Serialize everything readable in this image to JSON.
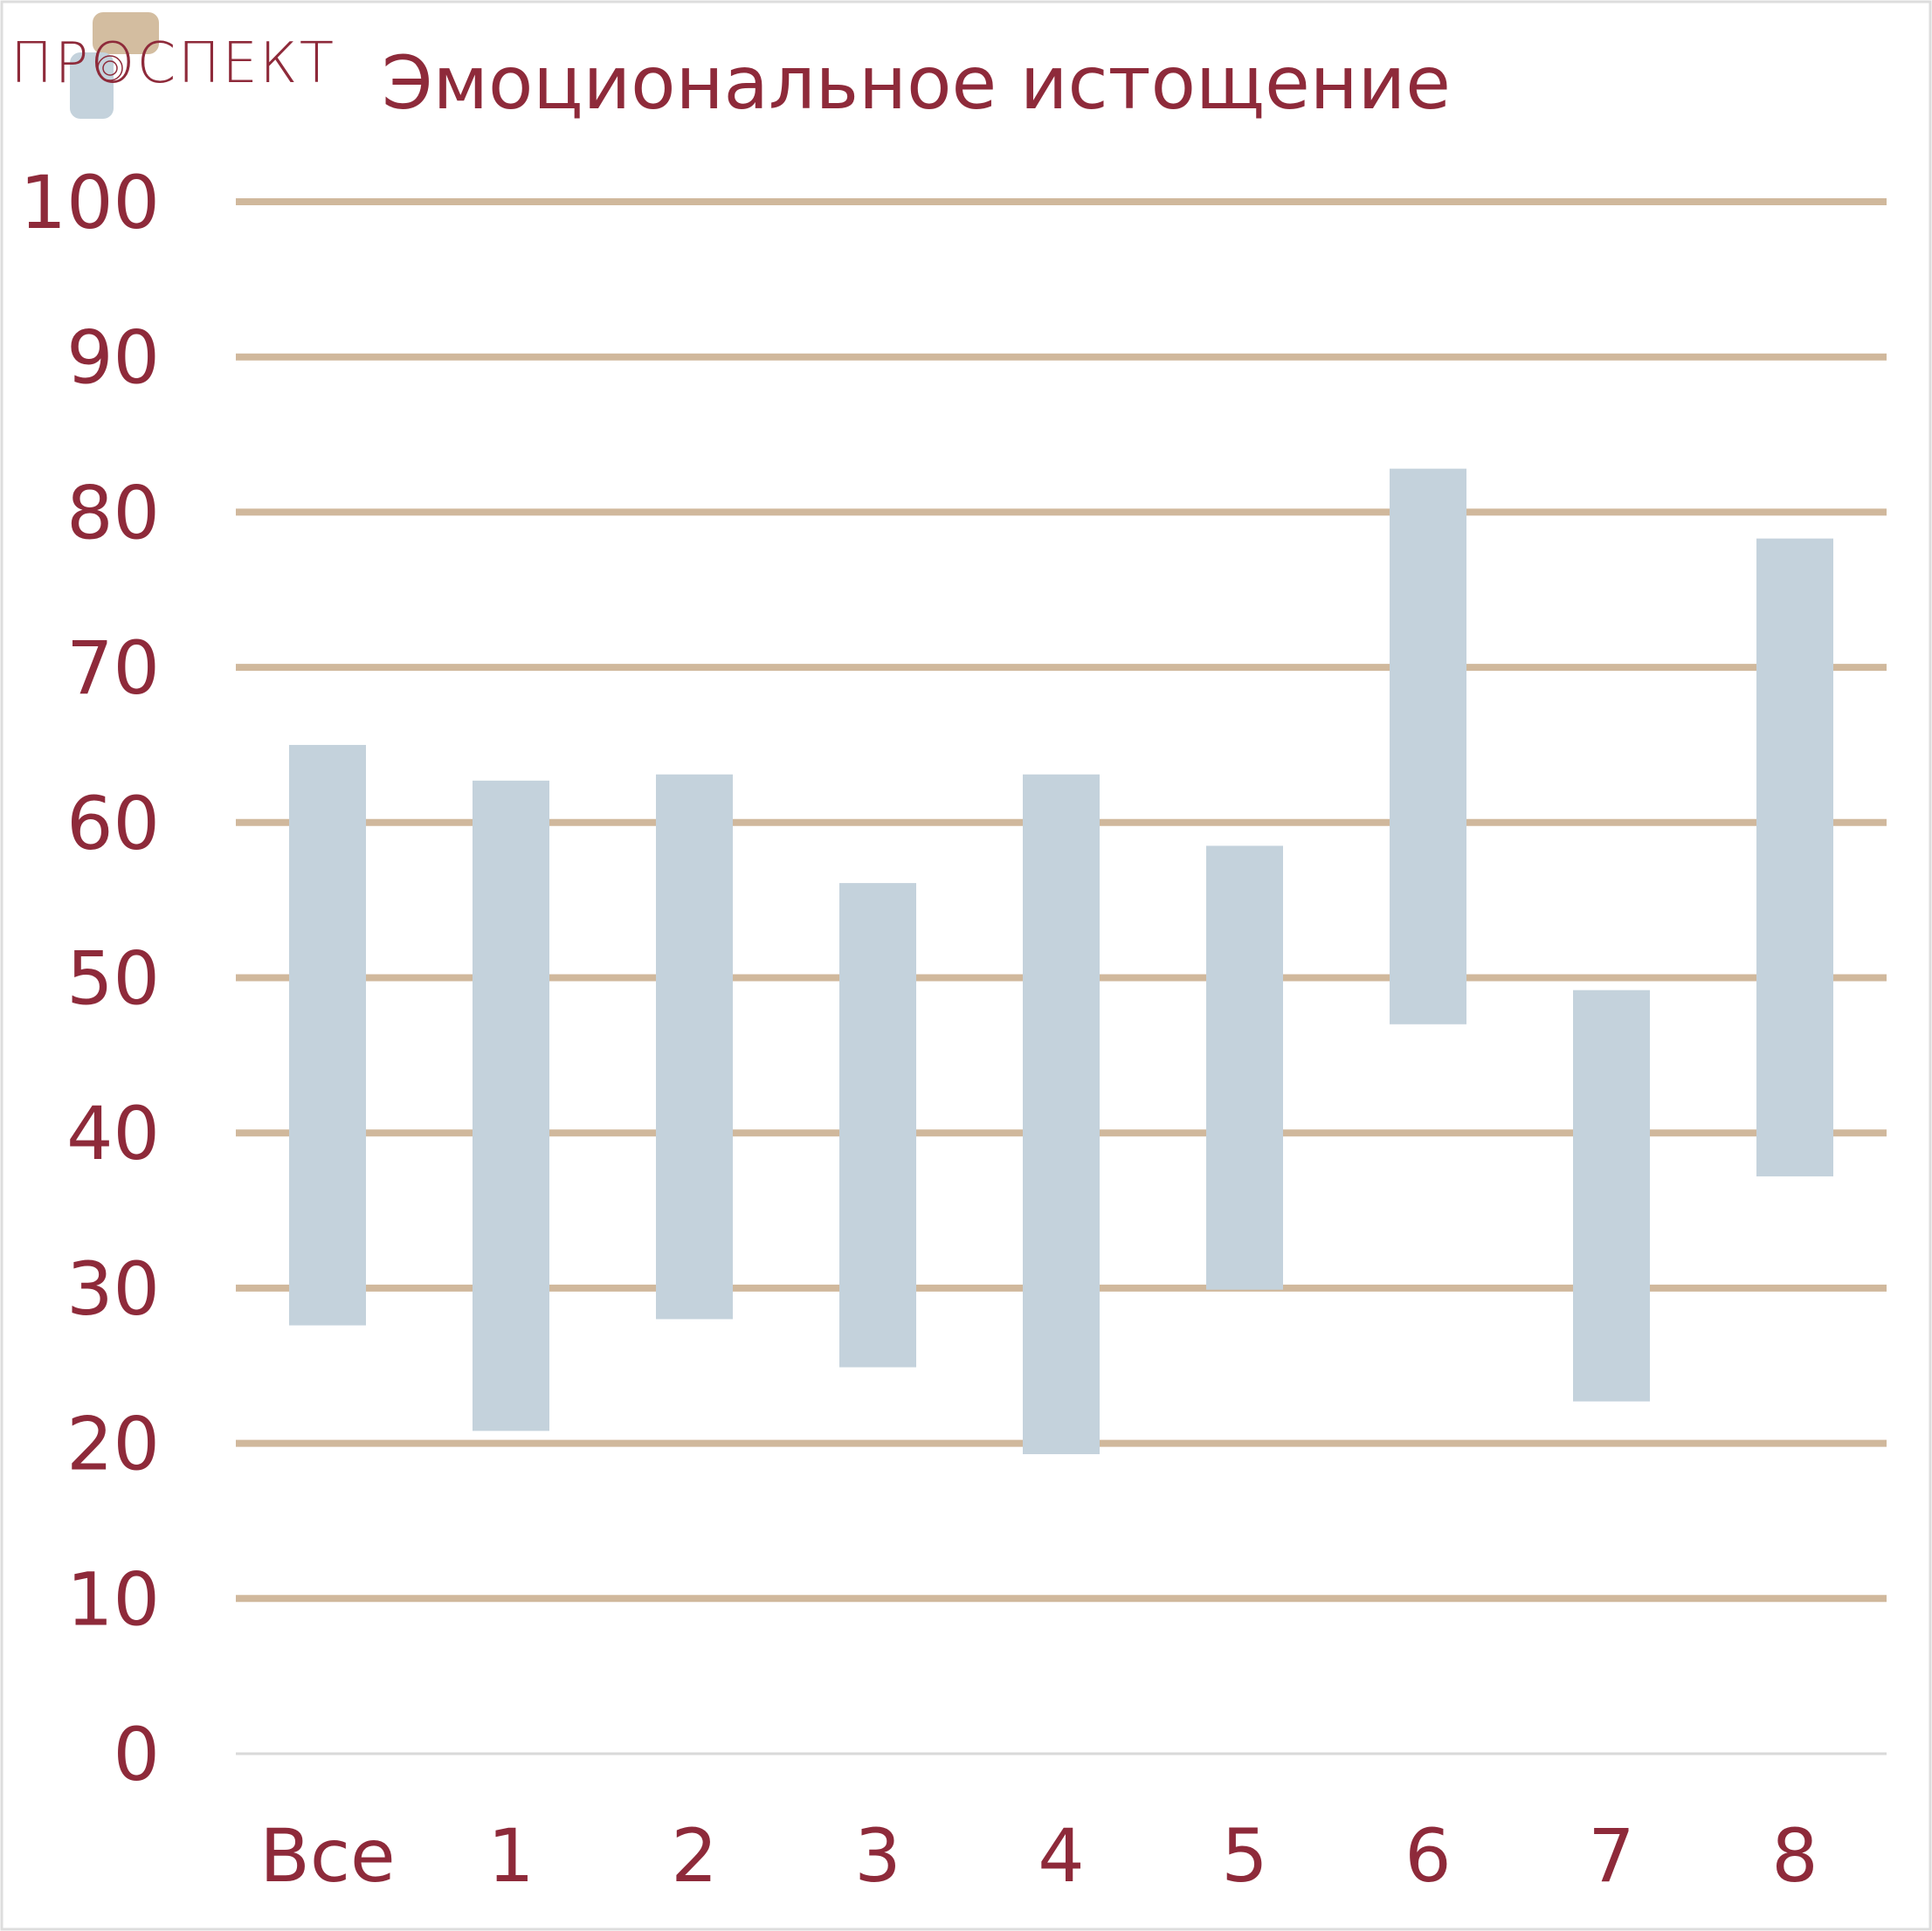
{
  "logo": "ПРОСПЕКТ",
  "chart_data": {
    "type": "range-bar",
    "title": "Эмоциональное истощение",
    "categories": [
      "Все",
      "1",
      "2",
      "3",
      "4",
      "5",
      "6",
      "7",
      "8"
    ],
    "low": [
      27.6,
      20.8,
      28.0,
      24.9,
      19.3,
      29.9,
      47.0,
      22.7,
      37.2
    ],
    "high": [
      65.0,
      62.7,
      63.1,
      56.1,
      63.1,
      58.5,
      82.8,
      49.2,
      78.3
    ],
    "color": "#c4d2dc",
    "grid_color": "#d0b89c",
    "ylim": [
      0,
      100
    ],
    "yticks": [
      0,
      10,
      20,
      30,
      40,
      50,
      60,
      70,
      80,
      90,
      100
    ],
    "grid": true
  }
}
